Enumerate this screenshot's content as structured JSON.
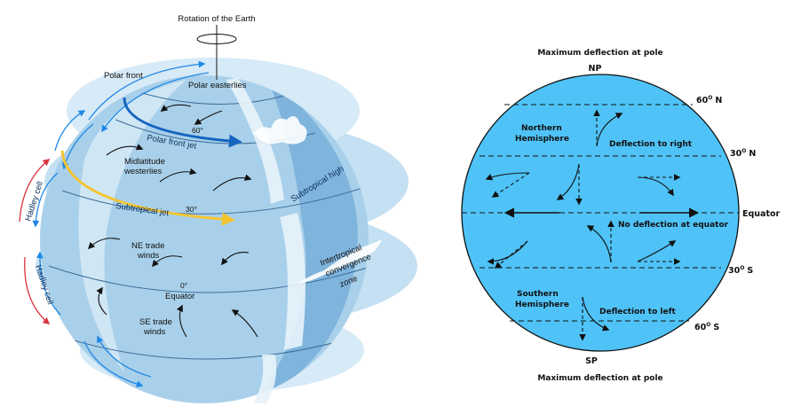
{
  "globe": {
    "rotation_label": "Rotation of the Earth",
    "polar_front": "Polar front",
    "polar_easterlies": "Polar easterlies",
    "lat_60": "60°",
    "polar_front_jet": "Polar front jet",
    "midlatitude_line1": "Midlatitude",
    "midlatitude_line2": "westerlies",
    "subtropical_high": "Subtropical high",
    "hadley_cell_north": "Hadley cell",
    "subtropical_jet": "Subtropical jet",
    "lat_30": "30°",
    "ne_trade_line1": "NE trade",
    "ne_trade_line2": "winds",
    "itcz_line1": "Intertropical",
    "itcz_line2": "convergence",
    "itcz_line3": "zone",
    "hadley_cell_south": "Hadley cell",
    "lat_0": "0°",
    "equator": "Equator",
    "se_trade_line1": "SE trade",
    "se_trade_line2": "winds"
  },
  "coriolis": {
    "max_top": "Maximum deflection at pole",
    "np": "NP",
    "lat_60n": "60",
    "lat_60n_suffix": "N",
    "nh_line1": "Northern",
    "nh_line2": "Hemisphere",
    "deflect_right": "Deflection to right",
    "lat_30n": "30",
    "lat_30n_suffix": "N",
    "equator": "Equator",
    "no_deflection": "No deflection at equator",
    "lat_30s": "30",
    "lat_30s_suffix": "S",
    "sh_line1": "Southern",
    "sh_line2": "Hemisphere",
    "deflect_left": "Deflection to left",
    "lat_60s": "60",
    "lat_60s_suffix": "S",
    "sp": "SP",
    "max_bottom": "Maximum deflection at pole",
    "degree_mark": "O"
  },
  "colors": {
    "ocean": "#4fc3f7",
    "globe_light": "#cfe6f5",
    "globe_mid": "#a9d0ea",
    "globe_dark": "#7fb4dc",
    "jet_blue": "#1565c0",
    "jet_yellow": "#f4c430",
    "hadley_red": "#d9343f"
  }
}
